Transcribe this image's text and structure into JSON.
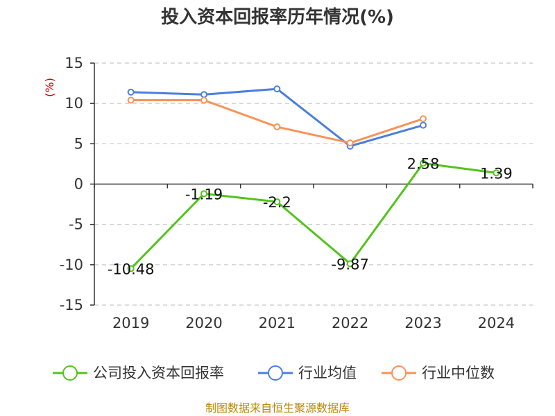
{
  "chart_data": {
    "type": "line",
    "title": "投入资本回报率历年情况(%)",
    "ylabel": "(%)",
    "categories": [
      "2019",
      "2020",
      "2021",
      "2022",
      "2023",
      "2024"
    ],
    "ylim": [
      -15,
      15
    ],
    "yticks": [
      15,
      10,
      5,
      0,
      -5,
      -10,
      -15
    ],
    "grid": true,
    "legend_position": "bottom",
    "series": [
      {
        "name": "公司投入资本回报率",
        "color": "#52c41a",
        "values": [
          -10.48,
          -1.19,
          -2.2,
          -9.87,
          2.58,
          1.39
        ],
        "labels": [
          "-10.48",
          "-1.19",
          "-2.2",
          "-9.87",
          "2.58",
          "1.39"
        ]
      },
      {
        "name": "行业均值",
        "color": "#4a7fdc",
        "values": [
          11.4,
          11.1,
          11.8,
          4.7,
          7.3,
          null
        ]
      },
      {
        "name": "行业中位数",
        "color": "#f89256",
        "values": [
          10.4,
          10.4,
          7.1,
          5.1,
          8.1,
          null
        ]
      }
    ]
  },
  "source": "制图数据来自恒生聚源数据库"
}
